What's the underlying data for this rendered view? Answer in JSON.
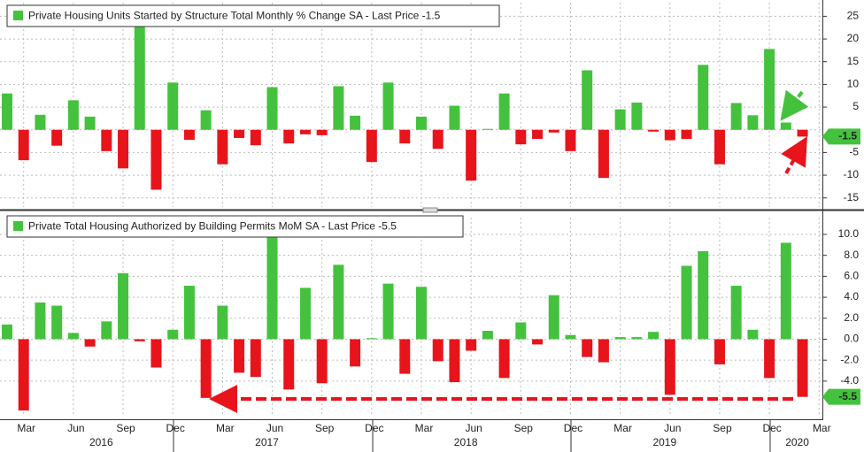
{
  "chart_data": [
    {
      "type": "bar",
      "title": "Private Housing Units Started by Structure Total Monthly % Change SA - Last Price -1.5",
      "values": [
        8,
        -6.7,
        3.3,
        -3.5,
        6.5,
        2.9,
        -4.7,
        -8.5,
        22.9,
        -13.2,
        10.4,
        -2.2,
        4.3,
        -7.6,
        -1.8,
        -3.4,
        9.4,
        -3.0,
        -1.0,
        -1.2,
        9.6,
        3.1,
        -7.1,
        10.4,
        -3.0,
        2.9,
        -4.2,
        5.3,
        -11.2,
        0.2,
        8.0,
        -3.2,
        -2.0,
        -0.6,
        -4.7,
        13.1,
        -10.6,
        4.5,
        6.0,
        -0.4,
        -2.3,
        -2.0,
        14.3,
        -7.6,
        5.9,
        3.2,
        17.8,
        1.6,
        -1.5
      ],
      "positive_color": "#44c23e",
      "negative_color": "#e8141b",
      "ylim": [
        -17,
        28
      ],
      "yticks": [
        -15,
        -10,
        -5,
        5,
        10,
        15,
        20,
        25
      ],
      "last_price": -1.5,
      "grid": true
    },
    {
      "type": "bar",
      "title": "Private Total Housing Authorized by Building Permits MoM SA - Last Price -5.5",
      "categories": [
        null,
        "Mar",
        null,
        null,
        "Jun",
        null,
        null,
        "Sep",
        null,
        null,
        "Dec",
        null,
        null,
        "Mar",
        null,
        null,
        "Jun",
        null,
        null,
        "Sep",
        null,
        null,
        "Dec",
        null,
        null,
        "Mar",
        null,
        null,
        "Jun",
        null,
        null,
        "Sep",
        null,
        null,
        "Dec",
        null,
        null,
        "Mar",
        null,
        null,
        "Jun",
        null,
        null,
        "Sep",
        null,
        null,
        "Dec",
        null,
        null,
        "Mar"
      ],
      "year_labels": [
        null,
        null,
        null,
        null,
        null,
        null,
        "2016",
        null,
        null,
        null,
        null,
        null,
        null,
        null,
        null,
        null,
        "2017",
        null,
        null,
        null,
        null,
        null,
        null,
        null,
        null,
        null,
        null,
        null,
        "2018",
        null,
        null,
        null,
        null,
        null,
        null,
        null,
        null,
        null,
        null,
        null,
        "2019",
        null,
        null,
        null,
        null,
        null,
        null,
        null,
        "2020",
        null
      ],
      "values": [
        1.4,
        -6.8,
        3.5,
        3.2,
        0.6,
        -0.7,
        1.7,
        6.3,
        -0.2,
        -2.7,
        0.9,
        5.1,
        -5.6,
        3.2,
        -3.2,
        -3.6,
        9.8,
        -4.8,
        4.9,
        -4.2,
        7.1,
        -2.6,
        0.1,
        5.3,
        -3.3,
        5.0,
        -2.1,
        -4.1,
        -1.1,
        0.8,
        -3.7,
        1.6,
        -0.5,
        4.2,
        0.4,
        -1.7,
        -2.2,
        0.2,
        0.2,
        0.7,
        -5.3,
        7.0,
        8.4,
        -2.4,
        5.1,
        0.9,
        -3.7,
        9.2,
        -5.5,
        null
      ],
      "positive_color": "#44c23e",
      "negative_color": "#e8141b",
      "ylim": [
        -7.3,
        11.6
      ],
      "yticks": [
        {
          "value": -4,
          "label": "-4.0"
        },
        {
          "value": -2,
          "label": "-2.0"
        },
        {
          "value": 0,
          "label": "0.0"
        },
        {
          "value": 2,
          "label": "2.0"
        },
        {
          "value": 4,
          "label": "4.0"
        },
        {
          "value": 6,
          "label": "6.0"
        },
        {
          "value": 8,
          "label": "8.0"
        },
        {
          "value": 10,
          "label": "10.0"
        }
      ],
      "last_price": -5.5,
      "grid": true
    }
  ]
}
